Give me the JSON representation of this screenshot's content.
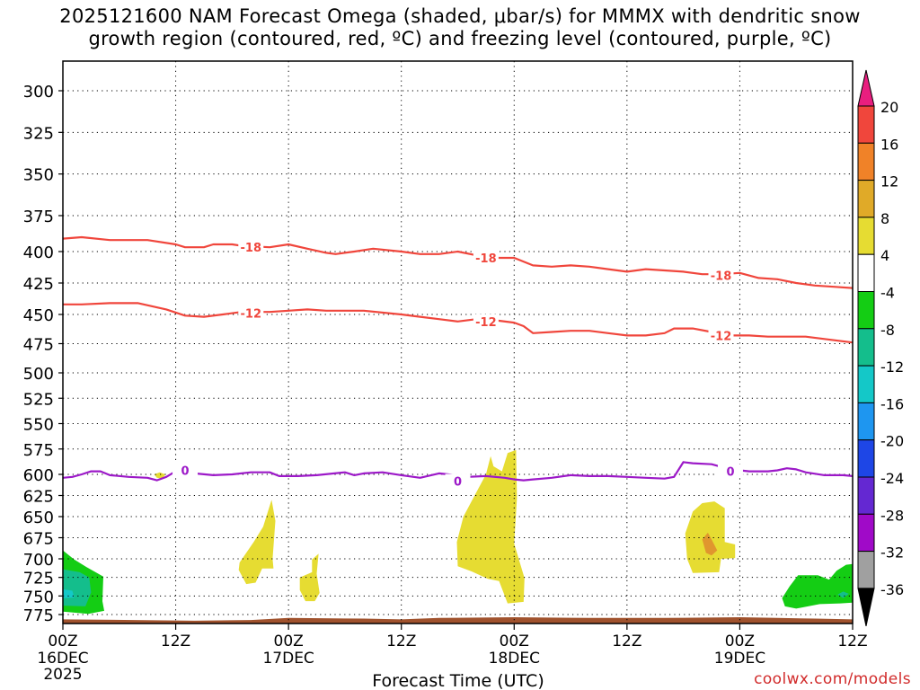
{
  "title_line1": "2025121600 NAM Forecast Omega (shaded, μbar/s) for MMMX with dendritic snow",
  "title_line2": "growth region (contoured, red, ºC) and freezing level (contoured, purple, ºC)",
  "credit": "coolwx.com/models",
  "chart_data": {
    "type": "time-height",
    "xlabel": "Forecast Time (UTC)",
    "x_range_hours": [
      0,
      84
    ],
    "x_ticks": [
      {
        "hour": 0,
        "label": "00Z",
        "date": "16DEC",
        "year": "2025"
      },
      {
        "hour": 12,
        "label": "12Z"
      },
      {
        "hour": 24,
        "label": "00Z",
        "date": "17DEC"
      },
      {
        "hour": 36,
        "label": "12Z"
      },
      {
        "hour": 48,
        "label": "00Z",
        "date": "18DEC"
      },
      {
        "hour": 60,
        "label": "12Z"
      },
      {
        "hour": 72,
        "label": "00Z",
        "date": "19DEC"
      },
      {
        "hour": 84,
        "label": "12Z"
      }
    ],
    "y_ticks": [
      300,
      325,
      350,
      375,
      400,
      425,
      450,
      475,
      500,
      525,
      550,
      575,
      600,
      625,
      650,
      675,
      700,
      725,
      750,
      775
    ],
    "y_unit": "hPa",
    "grid": "dotted",
    "colorbar": {
      "labels": [
        "20",
        "16",
        "12",
        "8",
        "4",
        "-4",
        "-8",
        "-12",
        "-16",
        "-20",
        "-24",
        "-28",
        "-32",
        "-36"
      ],
      "colors": [
        "#e91e7f",
        "#f0463c",
        "#f08228",
        "#e0aa28",
        "#e6dc32",
        "#ffffff",
        "#14cd14",
        "#14be8c",
        "#14c8c8",
        "#1e96f0",
        "#1e46e6",
        "#6428d2",
        "#a00ac8",
        "#a0a0a0",
        "#000000"
      ]
    },
    "contours": [
      {
        "label": "-18",
        "color": "#f0463c",
        "points": [
          [
            0,
            391
          ],
          [
            2,
            390
          ],
          [
            5,
            392
          ],
          [
            9,
            392
          ],
          [
            12,
            395
          ],
          [
            13,
            397
          ],
          [
            15,
            397
          ],
          [
            16,
            395
          ],
          [
            18,
            395
          ],
          [
            19,
            396
          ],
          [
            22,
            397
          ],
          [
            24,
            395
          ],
          [
            26,
            398
          ],
          [
            28,
            401
          ],
          [
            29,
            402
          ],
          [
            31,
            400
          ],
          [
            33,
            398
          ],
          [
            36,
            400
          ],
          [
            38,
            402
          ],
          [
            40,
            402
          ],
          [
            42,
            400
          ],
          [
            44,
            403
          ],
          [
            46,
            405
          ],
          [
            48,
            405
          ],
          [
            50,
            411
          ],
          [
            52,
            412
          ],
          [
            54,
            411
          ],
          [
            56,
            412
          ],
          [
            58,
            414
          ],
          [
            60,
            416
          ],
          [
            62,
            414
          ],
          [
            64,
            415
          ],
          [
            66,
            416
          ],
          [
            68,
            418
          ],
          [
            70,
            418
          ],
          [
            72,
            417
          ],
          [
            74,
            421
          ],
          [
            76,
            422
          ],
          [
            78,
            425
          ],
          [
            80,
            427
          ],
          [
            82,
            428
          ],
          [
            84,
            429
          ]
        ],
        "label_positions": [
          [
            20,
            397
          ],
          [
            45,
            405
          ],
          [
            70,
            419
          ]
        ]
      },
      {
        "label": "-12",
        "color": "#f0463c",
        "points": [
          [
            0,
            442
          ],
          [
            2,
            442
          ],
          [
            5,
            441
          ],
          [
            8,
            441
          ],
          [
            11,
            446
          ],
          [
            13,
            451
          ],
          [
            15,
            452
          ],
          [
            17,
            450
          ],
          [
            19,
            448
          ],
          [
            22,
            448
          ],
          [
            24,
            447
          ],
          [
            26,
            446
          ],
          [
            28,
            447
          ],
          [
            32,
            447
          ],
          [
            36,
            450
          ],
          [
            38,
            452
          ],
          [
            40,
            454
          ],
          [
            42,
            456
          ],
          [
            44,
            454
          ],
          [
            46,
            455
          ],
          [
            48,
            457
          ],
          [
            49,
            460
          ],
          [
            50,
            466
          ],
          [
            52,
            465
          ],
          [
            54,
            464
          ],
          [
            56,
            464
          ],
          [
            58,
            466
          ],
          [
            60,
            468
          ],
          [
            62,
            468
          ],
          [
            64,
            466
          ],
          [
            65,
            462
          ],
          [
            67,
            462
          ],
          [
            69,
            465
          ],
          [
            71,
            468
          ],
          [
            73,
            468
          ],
          [
            75,
            469
          ],
          [
            77,
            469
          ],
          [
            79,
            469
          ],
          [
            81,
            471
          ],
          [
            84,
            474
          ]
        ],
        "label_positions": [
          [
            20,
            449
          ],
          [
            45,
            456
          ],
          [
            70,
            468
          ]
        ]
      },
      {
        "label": "0",
        "color": "#9c19c8",
        "points": [
          [
            0,
            604
          ],
          [
            1,
            603
          ],
          [
            2,
            600
          ],
          [
            3,
            597
          ],
          [
            4,
            597
          ],
          [
            5,
            601
          ],
          [
            7,
            603
          ],
          [
            9,
            604
          ],
          [
            10,
            607
          ],
          [
            11,
            603
          ],
          [
            12,
            597
          ],
          [
            13,
            597
          ],
          [
            14,
            599
          ],
          [
            16,
            601
          ],
          [
            18,
            600
          ],
          [
            20,
            598
          ],
          [
            22,
            598
          ],
          [
            23,
            602
          ],
          [
            25,
            602
          ],
          [
            27,
            601
          ],
          [
            30,
            598
          ],
          [
            31,
            601
          ],
          [
            32,
            599
          ],
          [
            34,
            598
          ],
          [
            36,
            601
          ],
          [
            38,
            604
          ],
          [
            40,
            599
          ],
          [
            41,
            600
          ],
          [
            43,
            603
          ],
          [
            45,
            602
          ],
          [
            47,
            604
          ],
          [
            48,
            606
          ],
          [
            49,
            607
          ],
          [
            50,
            606
          ],
          [
            52,
            604
          ],
          [
            54,
            601
          ],
          [
            56,
            602
          ],
          [
            58,
            602
          ],
          [
            60,
            603
          ],
          [
            62,
            604
          ],
          [
            64,
            605
          ],
          [
            65,
            603
          ],
          [
            66,
            588
          ],
          [
            67,
            589
          ],
          [
            69,
            590
          ],
          [
            71,
            595
          ],
          [
            73,
            597
          ],
          [
            75,
            597
          ],
          [
            76,
            596
          ],
          [
            77,
            594
          ],
          [
            78,
            595
          ],
          [
            79,
            598
          ],
          [
            81,
            601
          ],
          [
            83,
            601
          ],
          [
            84,
            602
          ]
        ],
        "label_positions": [
          [
            13,
            596
          ],
          [
            42,
            608
          ],
          [
            71,
            597
          ]
        ]
      }
    ],
    "omega_regions": [
      {
        "category": "4 to 8",
        "polygons": [
          [
            [
              9.7,
              600
            ],
            [
              10.3,
              598
            ],
            [
              10.9,
              600
            ],
            [
              10.6,
              605
            ],
            [
              10.0,
              604
            ]
          ],
          [
            [
              18.8,
              705
            ],
            [
              20.3,
              680
            ],
            [
              21.3,
              662
            ],
            [
              22.2,
              630
            ],
            [
              22.6,
              655
            ],
            [
              22.3,
              700
            ],
            [
              22.4,
              713
            ],
            [
              21.2,
              713
            ],
            [
              20.5,
              732
            ],
            [
              19.5,
              734
            ],
            [
              18.7,
              715
            ]
          ],
          [
            [
              25.2,
              725
            ],
            [
              26.5,
              718
            ],
            [
              26.5,
              701
            ],
            [
              27.2,
              694
            ],
            [
              27.0,
              720
            ],
            [
              27.3,
              746
            ],
            [
              26.8,
              757
            ],
            [
              25.8,
              757
            ],
            [
              25.2,
              742
            ]
          ],
          [
            [
              41.9,
              680
            ],
            [
              42.6,
              650
            ],
            [
              43.8,
              625
            ],
            [
              45.0,
              600
            ],
            [
              45.5,
              582
            ],
            [
              45.8,
              592
            ],
            [
              46.7,
              597
            ],
            [
              47.3,
              579
            ],
            [
              48.2,
              576
            ],
            [
              48.3,
              628
            ],
            [
              48.0,
              682
            ],
            [
              49.1,
              726
            ],
            [
              49.0,
              758
            ],
            [
              47.3,
              760
            ],
            [
              46.4,
              730
            ],
            [
              45.2,
              727
            ],
            [
              43.5,
              717
            ],
            [
              42.0,
              710
            ]
          ],
          [
            [
              66.2,
              670
            ],
            [
              67.0,
              644
            ],
            [
              68.0,
              634
            ],
            [
              69.3,
              632
            ],
            [
              70.4,
              640
            ],
            [
              70.4,
              680
            ],
            [
              71.5,
              683
            ],
            [
              71.5,
              699
            ],
            [
              70.0,
              700
            ],
            [
              69.8,
              718
            ],
            [
              67.0,
              719
            ],
            [
              66.4,
              700
            ]
          ]
        ]
      },
      {
        "category": "8 to 12",
        "polygons": [
          [
            [
              68.0,
              677
            ],
            [
              68.6,
              669
            ],
            [
              69.0,
              677
            ],
            [
              69.6,
              690
            ],
            [
              69.0,
              696
            ],
            [
              68.4,
              693
            ]
          ]
        ]
      },
      {
        "category": "-4 to -8",
        "polygons": [
          [
            [
              0,
              690
            ],
            [
              1.2,
              701
            ],
            [
              2.5,
              711
            ],
            [
              4.3,
              724
            ],
            [
              4.2,
              757
            ],
            [
              4.4,
              770
            ],
            [
              2.7,
              774
            ],
            [
              0,
              771
            ]
          ],
          [
            [
              76.5,
              753
            ],
            [
              77.3,
              737
            ],
            [
              78.2,
              722
            ],
            [
              80.3,
              722
            ],
            [
              81.5,
              728
            ],
            [
              82.3,
              716
            ],
            [
              83.3,
              708
            ],
            [
              84,
              707
            ],
            [
              84,
              759
            ],
            [
              82.7,
              760
            ],
            [
              80.5,
              761
            ],
            [
              78.0,
              767
            ],
            [
              76.8,
              764
            ]
          ]
        ]
      },
      {
        "category": "-8 to -12",
        "polygons": [
          [
            [
              0,
              714
            ],
            [
              1.8,
              718
            ],
            [
              2.8,
              725
            ],
            [
              3.0,
              745
            ],
            [
              2.4,
              764
            ],
            [
              0,
              763
            ]
          ],
          [
            [
              82.4,
              748
            ],
            [
              83.0,
              744
            ],
            [
              83.6,
              747
            ],
            [
              83.0,
              753
            ]
          ]
        ]
      },
      {
        "category": "-12 to -16",
        "polygons": [
          [
            [
              0,
              741
            ],
            [
              1.0,
              743
            ],
            [
              1.2,
              752
            ],
            [
              0,
              753
            ]
          ]
        ]
      }
    ],
    "ground": {
      "color": "#a0522d",
      "top_hPa": [
        [
          0,
          782
        ],
        [
          14,
          784
        ],
        [
          20,
          783
        ],
        [
          24,
          780
        ],
        [
          32,
          781
        ],
        [
          36,
          782
        ],
        [
          40,
          780
        ],
        [
          48,
          779
        ],
        [
          56,
          780
        ],
        [
          64,
          780
        ],
        [
          72,
          779
        ],
        [
          76,
          780
        ],
        [
          80,
          781
        ],
        [
          84,
          782
        ]
      ]
    }
  }
}
